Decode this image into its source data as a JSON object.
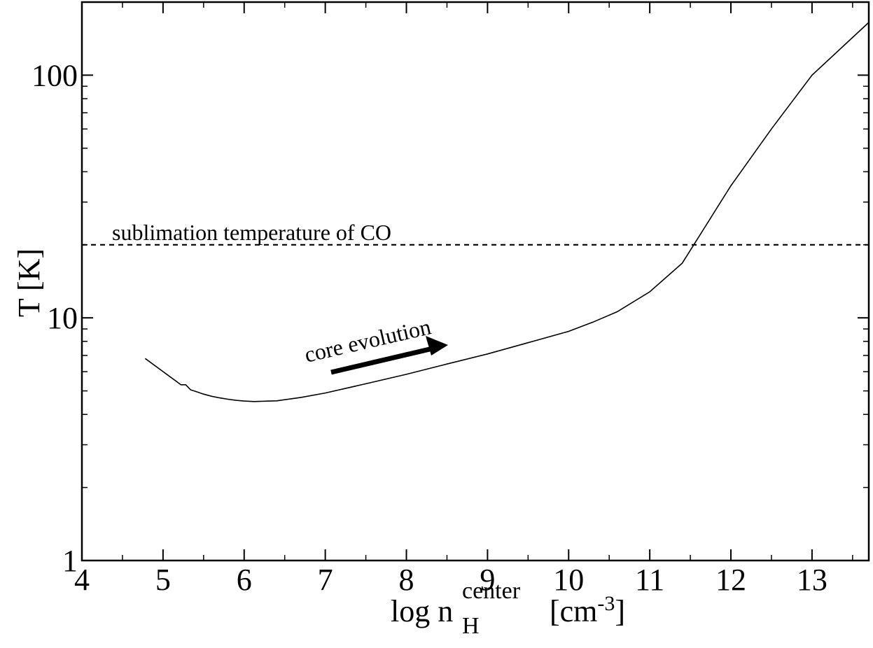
{
  "chart_data": {
    "type": "line",
    "x_scale": "linear",
    "y_scale": "log",
    "xlim": [
      4,
      13.7
    ],
    "ylim": [
      1,
      200
    ],
    "x_ticks": [
      4,
      5,
      6,
      7,
      8,
      9,
      10,
      11,
      12,
      13
    ],
    "x_tick_labels": [
      "4",
      "5",
      "6",
      "7",
      "8",
      "9",
      "10",
      "11",
      "12",
      "13"
    ],
    "y_ticks": [
      1,
      10,
      100
    ],
    "y_tick_labels": [
      "1",
      "10",
      "100"
    ],
    "xlabel": {
      "main": "log n",
      "sup": "center",
      "sub": "H",
      "unit_pre": "[cm",
      "unit_sup": "-3",
      "unit_post": "]"
    },
    "ylabel": "T [K]",
    "grid": false,
    "series": [
      {
        "style": "solid",
        "color": "#000000",
        "x": [
          4.78,
          5.22,
          5.28,
          5.34,
          5.4,
          5.5,
          5.6,
          5.7,
          5.8,
          5.9,
          6.0,
          6.12,
          6.4,
          6.7,
          7.0,
          7.5,
          8.0,
          8.5,
          9.0,
          9.5,
          10.0,
          10.3,
          10.6,
          11.0,
          11.4,
          12.0,
          12.5,
          13.0,
          13.7
        ],
        "y": [
          6.8,
          5.3,
          5.3,
          5.05,
          4.98,
          4.85,
          4.75,
          4.68,
          4.62,
          4.57,
          4.54,
          4.52,
          4.55,
          4.7,
          4.9,
          5.35,
          5.85,
          6.45,
          7.1,
          7.9,
          8.8,
          9.6,
          10.6,
          12.8,
          16.8,
          35,
          60,
          100,
          165
        ]
      },
      {
        "style": "dashed",
        "color": "#000000",
        "x": [
          4,
          13.7
        ],
        "y": [
          20,
          20
        ]
      }
    ],
    "annotations": {
      "co_line_label": "sublimation temperature of CO",
      "arrow_label": "core evolution"
    }
  }
}
